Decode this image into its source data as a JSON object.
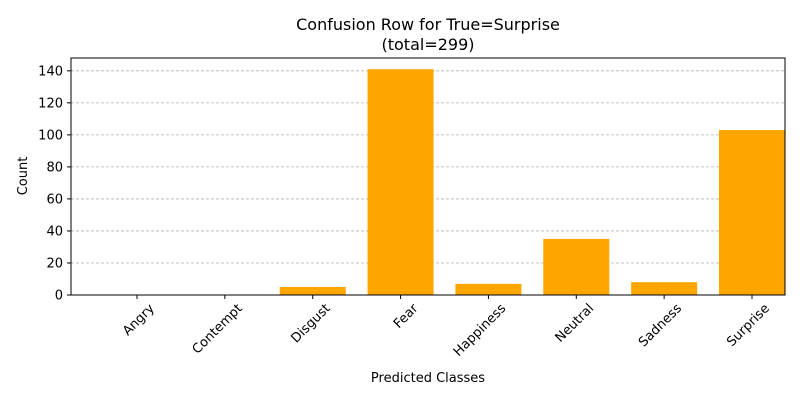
{
  "chart_data": {
    "type": "bar",
    "title_line1": "Confusion Row for True=Surprise",
    "title_line2": "(total=299)",
    "xlabel": "Predicted Classes",
    "ylabel": "Count",
    "categories": [
      "Angry",
      "Contempt",
      "Disgust",
      "Fear",
      "Happiness",
      "Neutral",
      "Sadness",
      "Surprise"
    ],
    "values": [
      0,
      0,
      5,
      141,
      7,
      35,
      8,
      103
    ],
    "ylim": [
      0,
      148
    ],
    "yticks": [
      0,
      20,
      40,
      60,
      80,
      100,
      120,
      140
    ],
    "grid": "y-dashed",
    "bar_color": "#ffa500"
  }
}
